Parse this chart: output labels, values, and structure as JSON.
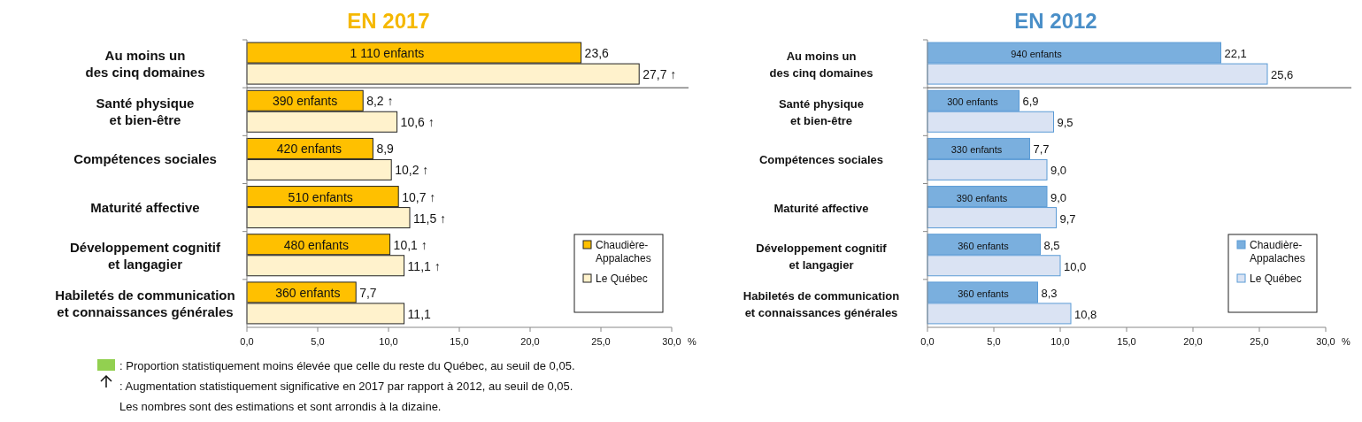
{
  "chart_data": [
    {
      "type": "bar",
      "orientation": "horizontal",
      "title": "EN 2017",
      "xlabel": "%",
      "legend": "bottom right",
      "categories": [
        "Au moins un\ndes cinq domaines",
        "Santé physique\net bien-être",
        "Compétences sociales",
        "Maturité affective",
        "Développement cognitif\net langagier",
        "Habiletés de communication\net connaissances générales"
      ],
      "series": [
        {
          "name": "Chaudière-\nAppalaches",
          "color": "#ffc000",
          "values": [
            23.6,
            8.2,
            8.9,
            10.7,
            10.1,
            7.7
          ],
          "value_labels": [
            "23,6",
            "8,2 ↑",
            "8,9",
            "10,7 ↑",
            "10,1 ↑",
            "7,7"
          ]
        },
        {
          "name": "Le Québec",
          "color": "#fff2cc",
          "values": [
            27.7,
            10.6,
            10.2,
            11.5,
            11.1,
            11.1
          ],
          "value_labels": [
            "27,7 ↑",
            "10,6 ↑",
            "10,2 ↑",
            "11,5 ↑",
            "11,1 ↑",
            "11,1"
          ]
        }
      ],
      "xlim": [
        0,
        30
      ],
      "xticks": [
        {
          "value": 0,
          "label": "0,0"
        },
        {
          "value": 5,
          "label": "5,0"
        },
        {
          "value": 10,
          "label": "10,0"
        },
        {
          "value": 15,
          "label": "15,0"
        },
        {
          "value": 20,
          "label": "20,0"
        },
        {
          "value": 25,
          "label": "25,0"
        },
        {
          "value": 30,
          "label": "30,0"
        }
      ],
      "annotations": [
        {
          "text": "1 110 enfants",
          "x": 9.9,
          "y": "Au moins un\ndes cinq domaines"
        },
        {
          "text": "390 enfants",
          "x": 4.1,
          "y": "Santé physique\net bien-être"
        },
        {
          "text": "420 enfants",
          "x": 4.4,
          "y": "Compétences sociales"
        },
        {
          "text": "510 enfants",
          "x": 5.2,
          "y": "Maturité affective"
        },
        {
          "text": "480 enfants",
          "x": 4.9,
          "y": "Développement cognitif\net langagier"
        },
        {
          "text": "360 enfants",
          "x": 4.3,
          "y": "Habiletés de communication\net connaissances générales"
        },
        ": Proportion statistiquement moins élevée que celle du reste du Québec, au seuil de 0,05.",
        ": Augmentation statistiquement significative en 2017 par rapport à 2012, au seuil de 0,05.",
        "Les nombres sont des estimations et sont arrondis à la dizaine."
      ]
    },
    {
      "type": "bar",
      "orientation": "horizontal",
      "title": "EN 2012",
      "xlabel": "%",
      "legend": "bottom right",
      "categories": [
        "Au moins un\ndes cinq domaines",
        "Santé physique\net bien-être",
        "Compétences sociales",
        "Maturité affective",
        "Développement cognitif\net langagier",
        "Habiletés de communication\net connaissances générales"
      ],
      "series": [
        {
          "name": "Chaudière-\nAppalaches",
          "color": "#7aafde",
          "values": [
            22.1,
            6.9,
            7.7,
            9.0,
            8.5,
            8.3
          ],
          "value_labels": [
            "22,1",
            "6,9",
            "7,7",
            "9,0",
            "8,5",
            "8,3"
          ]
        },
        {
          "name": "Le Québec",
          "color": "#dae3f3",
          "values": [
            25.6,
            9.5,
            9.0,
            9.7,
            10.0,
            10.8
          ],
          "value_labels": [
            "25,6",
            "9,5",
            "9,0",
            "9,7",
            "10,0",
            "10,8"
          ]
        }
      ],
      "xlim": [
        0,
        30
      ],
      "xticks": [
        {
          "value": 0,
          "label": "0,0"
        },
        {
          "value": 5,
          "label": "5,0"
        },
        {
          "value": 10,
          "label": "10,0"
        },
        {
          "value": 15,
          "label": "15,0"
        },
        {
          "value": 20,
          "label": "20,0"
        },
        {
          "value": 25,
          "label": "25,0"
        },
        {
          "value": 30,
          "label": "30,0"
        }
      ],
      "annotations": [
        {
          "text": "940 enfants",
          "x": 8.2,
          "y": "Au moins un\ndes cinq domaines"
        },
        {
          "text": "300 enfants",
          "x": 3.4,
          "y": "Santé physique\net bien-être"
        },
        {
          "text": "330 enfants",
          "x": 3.7,
          "y": "Compétences sociales"
        },
        {
          "text": "390 enfants",
          "x": 4.1,
          "y": "Maturité affective"
        },
        {
          "text": "360 enfants",
          "x": 4.2,
          "y": "Développement cognitif\net langagier"
        },
        {
          "text": "360 enfants",
          "x": 4.2,
          "y": "Habiletés de communication\net connaissances générales"
        }
      ]
    }
  ]
}
